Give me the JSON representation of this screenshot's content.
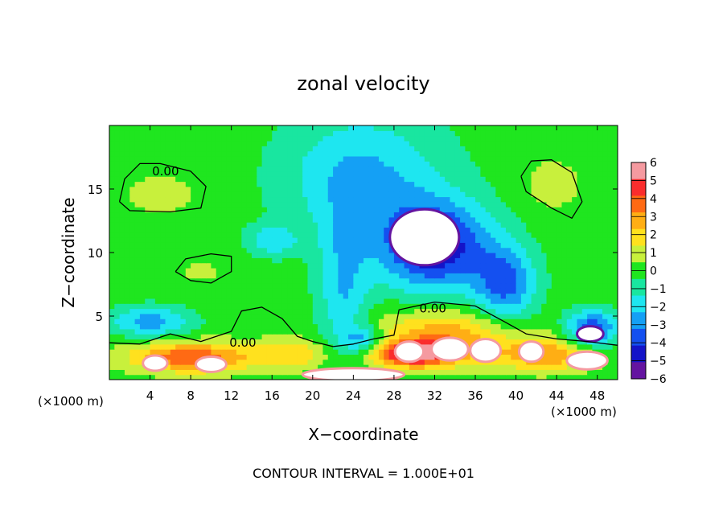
{
  "chart_data": {
    "type": "heatmap",
    "title": "zonal velocity",
    "xlabel": "X−coordinate",
    "ylabel": "Z−coordinate",
    "x_unit_left": "(×1000 m)",
    "x_unit_right": "(×1000 m)",
    "footer": "CONTOUR INTERVAL = 1.000E+01",
    "xlim": [
      0,
      50
    ],
    "ylim": [
      0,
      20
    ],
    "x_ticks": [
      4,
      8,
      12,
      16,
      20,
      24,
      28,
      32,
      36,
      40,
      44,
      48
    ],
    "y_ticks": [
      5,
      10,
      15
    ],
    "contour_labels": [
      {
        "text": "0.00",
        "x": 4.2,
        "y": 16.4
      },
      {
        "text": "0.00",
        "x": 30.5,
        "y": 5.6
      },
      {
        "text": "0.00",
        "x": 11.8,
        "y": 2.9
      }
    ],
    "colorbar": {
      "range": [
        -6,
        6
      ],
      "tick_labels": [
        "6",
        "5",
        "4",
        "3",
        "2",
        "1",
        "0",
        "−1",
        "−2",
        "−3",
        "−4",
        "−5",
        "−6"
      ],
      "colors": [
        "#f59aa0",
        "#fa2d2d",
        "#ff6a14",
        "#ffae14",
        "#ffe11e",
        "#c8f03c",
        "#1fe61f",
        "#19e6a0",
        "#1ee6f0",
        "#14a0f5",
        "#1450f0",
        "#1414c8",
        "#6414a0"
      ]
    },
    "field": {
      "background": 0,
      "features": [
        {
          "cx": 5,
          "cy": 14.6,
          "rx": 5,
          "ry": 2.2,
          "v": 0.7
        },
        {
          "cx": 43.5,
          "cy": 15.4,
          "rx": 3.5,
          "ry": 2.5,
          "v": 0.8
        },
        {
          "cx": 9,
          "cy": 8.5,
          "rx": 3.2,
          "ry": 1.2,
          "v": 0.6
        },
        {
          "cx": 25,
          "cy": 16,
          "rx": 8,
          "ry": 5,
          "v": -2.5
        },
        {
          "cx": 32,
          "cy": 10.5,
          "rx": 5.5,
          "ry": 3.5,
          "v": -5
        },
        {
          "cx": 23,
          "cy": 7,
          "rx": 2.5,
          "ry": 6,
          "v": -2.2
        },
        {
          "cx": 39,
          "cy": 7.5,
          "rx": 3,
          "ry": 3,
          "v": -3.4
        },
        {
          "cx": 4,
          "cy": 4.6,
          "rx": 4,
          "ry": 1.2,
          "v": -2.8
        },
        {
          "cx": 16,
          "cy": 11,
          "rx": 2.5,
          "ry": 1.2,
          "v": -2
        },
        {
          "cx": 47.5,
          "cy": 4,
          "rx": 2.5,
          "ry": 1.5,
          "v": -4
        },
        {
          "cx": 33,
          "cy": 3.5,
          "rx": 7,
          "ry": 2,
          "v": 3
        },
        {
          "cx": 25,
          "cy": 3.2,
          "rx": 2,
          "ry": 1,
          "v": -2.5
        },
        {
          "cx": 8,
          "cy": 1.8,
          "rx": 6,
          "ry": 1.2,
          "v": 4
        },
        {
          "cx": 18,
          "cy": 2,
          "rx": 4,
          "ry": 1.2,
          "v": 2
        },
        {
          "cx": 43,
          "cy": 2,
          "rx": 5,
          "ry": 1.3,
          "v": 3
        },
        {
          "cx": 30,
          "cy": 2,
          "rx": 4,
          "ry": 1,
          "v": 5
        }
      ],
      "saturated_regions": [
        {
          "cx": 31,
          "cy": 11.2,
          "rx": 3.4,
          "ry": 2.2,
          "sign": "negative"
        },
        {
          "cx": 47.3,
          "cy": 3.6,
          "rx": 1.3,
          "ry": 0.6,
          "sign": "negative"
        },
        {
          "cx": 29.5,
          "cy": 2.2,
          "rx": 1.4,
          "ry": 0.8,
          "sign": "positive"
        },
        {
          "cx": 33.5,
          "cy": 2.4,
          "rx": 1.8,
          "ry": 0.9,
          "sign": "positive"
        },
        {
          "cx": 37,
          "cy": 2.3,
          "rx": 1.5,
          "ry": 0.9,
          "sign": "positive"
        },
        {
          "cx": 41.5,
          "cy": 2.2,
          "rx": 1.2,
          "ry": 0.8,
          "sign": "positive"
        },
        {
          "cx": 4.5,
          "cy": 1.3,
          "rx": 1.2,
          "ry": 0.6,
          "sign": "positive"
        },
        {
          "cx": 10,
          "cy": 1.2,
          "rx": 1.5,
          "ry": 0.6,
          "sign": "positive"
        },
        {
          "cx": 47,
          "cy": 1.5,
          "rx": 2,
          "ry": 0.7,
          "sign": "positive"
        },
        {
          "cx": 24,
          "cy": 0.4,
          "rx": 5,
          "ry": 0.5,
          "sign": "positive"
        }
      ]
    },
    "contours_zero": [
      [
        [
          1,
          14
        ],
        [
          1.5,
          15.8
        ],
        [
          3,
          17
        ],
        [
          5,
          17
        ],
        [
          8,
          16.4
        ],
        [
          9.5,
          15.2
        ],
        [
          9,
          13.5
        ],
        [
          6,
          13.2
        ],
        [
          2,
          13.3
        ],
        [
          1,
          14
        ]
      ],
      [
        [
          40.5,
          16
        ],
        [
          41.5,
          17.2
        ],
        [
          43.5,
          17.3
        ],
        [
          45.5,
          16.3
        ],
        [
          46.5,
          14
        ],
        [
          45.5,
          12.7
        ],
        [
          43.5,
          13.5
        ],
        [
          41,
          14.8
        ],
        [
          40.5,
          16
        ]
      ],
      [
        [
          6.5,
          8.5
        ],
        [
          7.5,
          9.5
        ],
        [
          10,
          9.9
        ],
        [
          12,
          9.7
        ],
        [
          12,
          8.5
        ],
        [
          10,
          7.6
        ],
        [
          8,
          7.8
        ],
        [
          6.5,
          8.5
        ]
      ],
      [
        [
          0,
          2.9
        ],
        [
          3,
          2.8
        ],
        [
          6,
          3.6
        ],
        [
          9,
          3.0
        ],
        [
          12,
          3.8
        ],
        [
          13,
          5.4
        ],
        [
          15,
          5.7
        ],
        [
          17,
          4.8
        ],
        [
          18.5,
          3.4
        ],
        [
          20,
          3.0
        ],
        [
          22,
          2.6
        ],
        [
          24,
          2.8
        ],
        [
          26,
          3.2
        ],
        [
          28,
          3.5
        ],
        [
          28.5,
          5.5
        ],
        [
          32,
          6.1
        ],
        [
          36,
          5.8
        ],
        [
          39,
          4.5
        ],
        [
          41,
          3.6
        ],
        [
          44,
          3.2
        ],
        [
          47,
          3.0
        ],
        [
          50,
          2.7
        ]
      ]
    ]
  }
}
